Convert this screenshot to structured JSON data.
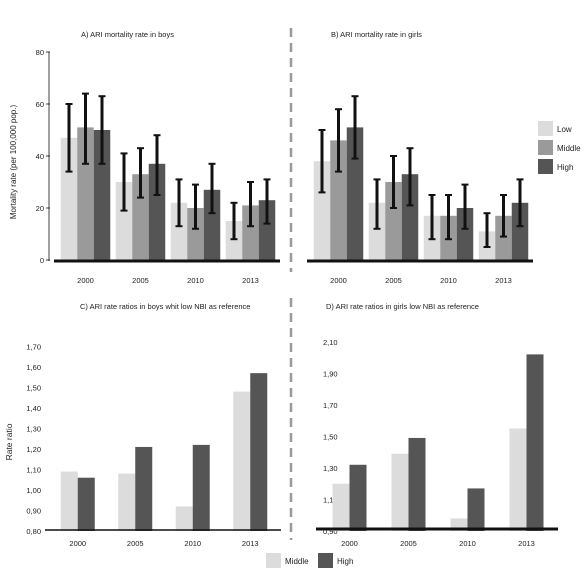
{
  "colors": {
    "low": "#dcdcdc",
    "middle": "#9a9a9a",
    "high": "#555555",
    "errorbar": "#111111",
    "axis": "#111111",
    "divider": "#9a9a9a"
  },
  "shared": {
    "ylabel_top": "Mortality rate (per 100,000 pop.)",
    "ylabel_bottom": "Rate ratio",
    "legend_top": [
      "Low",
      "Middle",
      "High"
    ],
    "legend_bottom": [
      "Middle",
      "High"
    ]
  },
  "chart_data": [
    {
      "id": "A",
      "type": "bar",
      "title": "A) ARI mortality rate in boys",
      "ylim": [
        0,
        80
      ],
      "yticks": [
        "0",
        "20",
        "40",
        "60",
        "80"
      ],
      "categories": [
        "2000",
        "2005",
        "2010",
        "2013"
      ],
      "series": [
        {
          "name": "Low",
          "values": [
            47,
            30,
            22,
            15
          ],
          "ci_low": [
            34,
            19,
            13,
            8
          ],
          "ci_high": [
            60,
            41,
            31,
            22
          ]
        },
        {
          "name": "Middle",
          "values": [
            51,
            33,
            20,
            21
          ],
          "ci_low": [
            37,
            24,
            12,
            13
          ],
          "ci_high": [
            64,
            43,
            29,
            30
          ]
        },
        {
          "name": "High",
          "values": [
            50,
            37,
            27,
            23
          ],
          "ci_low": [
            37,
            25,
            18,
            14
          ],
          "ci_high": [
            63,
            48,
            37,
            31
          ]
        }
      ]
    },
    {
      "id": "B",
      "type": "bar",
      "title": "B) ARI mortality rate in girls",
      "ylim": [
        0,
        80
      ],
      "categories": [
        "2000",
        "2005",
        "2010",
        "2013"
      ],
      "series": [
        {
          "name": "Low",
          "values": [
            38,
            22,
            17,
            11
          ],
          "ci_low": [
            26,
            12,
            8,
            5
          ],
          "ci_high": [
            50,
            31,
            25,
            18
          ]
        },
        {
          "name": "Middle",
          "values": [
            46,
            30,
            17,
            17
          ],
          "ci_low": [
            34,
            20,
            8,
            9
          ],
          "ci_high": [
            58,
            40,
            25,
            25
          ]
        },
        {
          "name": "High",
          "values": [
            51,
            33,
            20,
            22
          ],
          "ci_low": [
            39,
            21,
            12,
            13
          ],
          "ci_high": [
            63,
            43,
            29,
            31
          ]
        }
      ]
    },
    {
      "id": "C",
      "type": "bar",
      "title": "C) ARI rate ratios in boys whit low NBI as reference",
      "ylim": [
        0.8,
        1.8
      ],
      "yticks": [
        "0,80",
        "0,90",
        "1,00",
        "1,10",
        "1,20",
        "1,30",
        "1,40",
        "1,50",
        "1,60",
        "1,70"
      ],
      "categories": [
        "2000",
        "2005",
        "2010",
        "2013"
      ],
      "series": [
        {
          "name": "Middle",
          "values": [
            1.09,
            1.08,
            0.92,
            1.48
          ]
        },
        {
          "name": "High",
          "values": [
            1.06,
            1.21,
            1.22,
            1.57
          ]
        }
      ]
    },
    {
      "id": "D",
      "type": "bar",
      "title": "D) ARI rate ratios in girls low NBI as reference",
      "ylim": [
        0.9,
        2.2
      ],
      "yticks": [
        "0,90",
        "1,10",
        "1,30",
        "1,50",
        "1,70",
        "1,90",
        "2,10"
      ],
      "categories": [
        "2000",
        "2005",
        "2010",
        "2013"
      ],
      "series": [
        {
          "name": "Middle",
          "values": [
            1.2,
            1.39,
            0.98,
            1.55
          ]
        },
        {
          "name": "High",
          "values": [
            1.32,
            1.49,
            1.17,
            2.02
          ]
        }
      ]
    }
  ]
}
